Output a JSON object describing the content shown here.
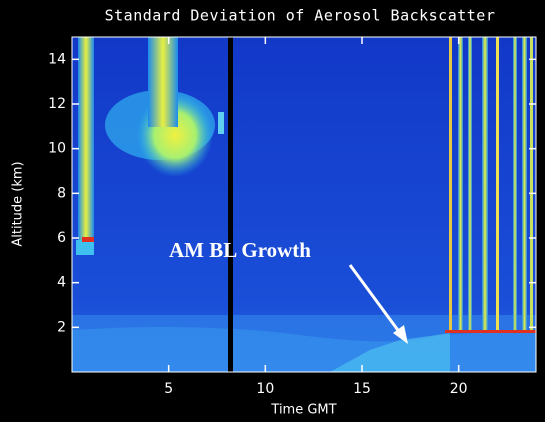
{
  "chart_data": {
    "type": "heatmap",
    "title": "Standard Deviation of Aerosol Backscatter",
    "x_label": "Time GMT",
    "y_label": "Altitude (km)",
    "annotation": "AM BL Growth",
    "xlim": [
      0,
      24
    ],
    "xticks": [
      5,
      10,
      15,
      20
    ],
    "ylim": [
      0,
      15
    ],
    "yticks": [
      2,
      4,
      6,
      8,
      10,
      12,
      14
    ]
  }
}
